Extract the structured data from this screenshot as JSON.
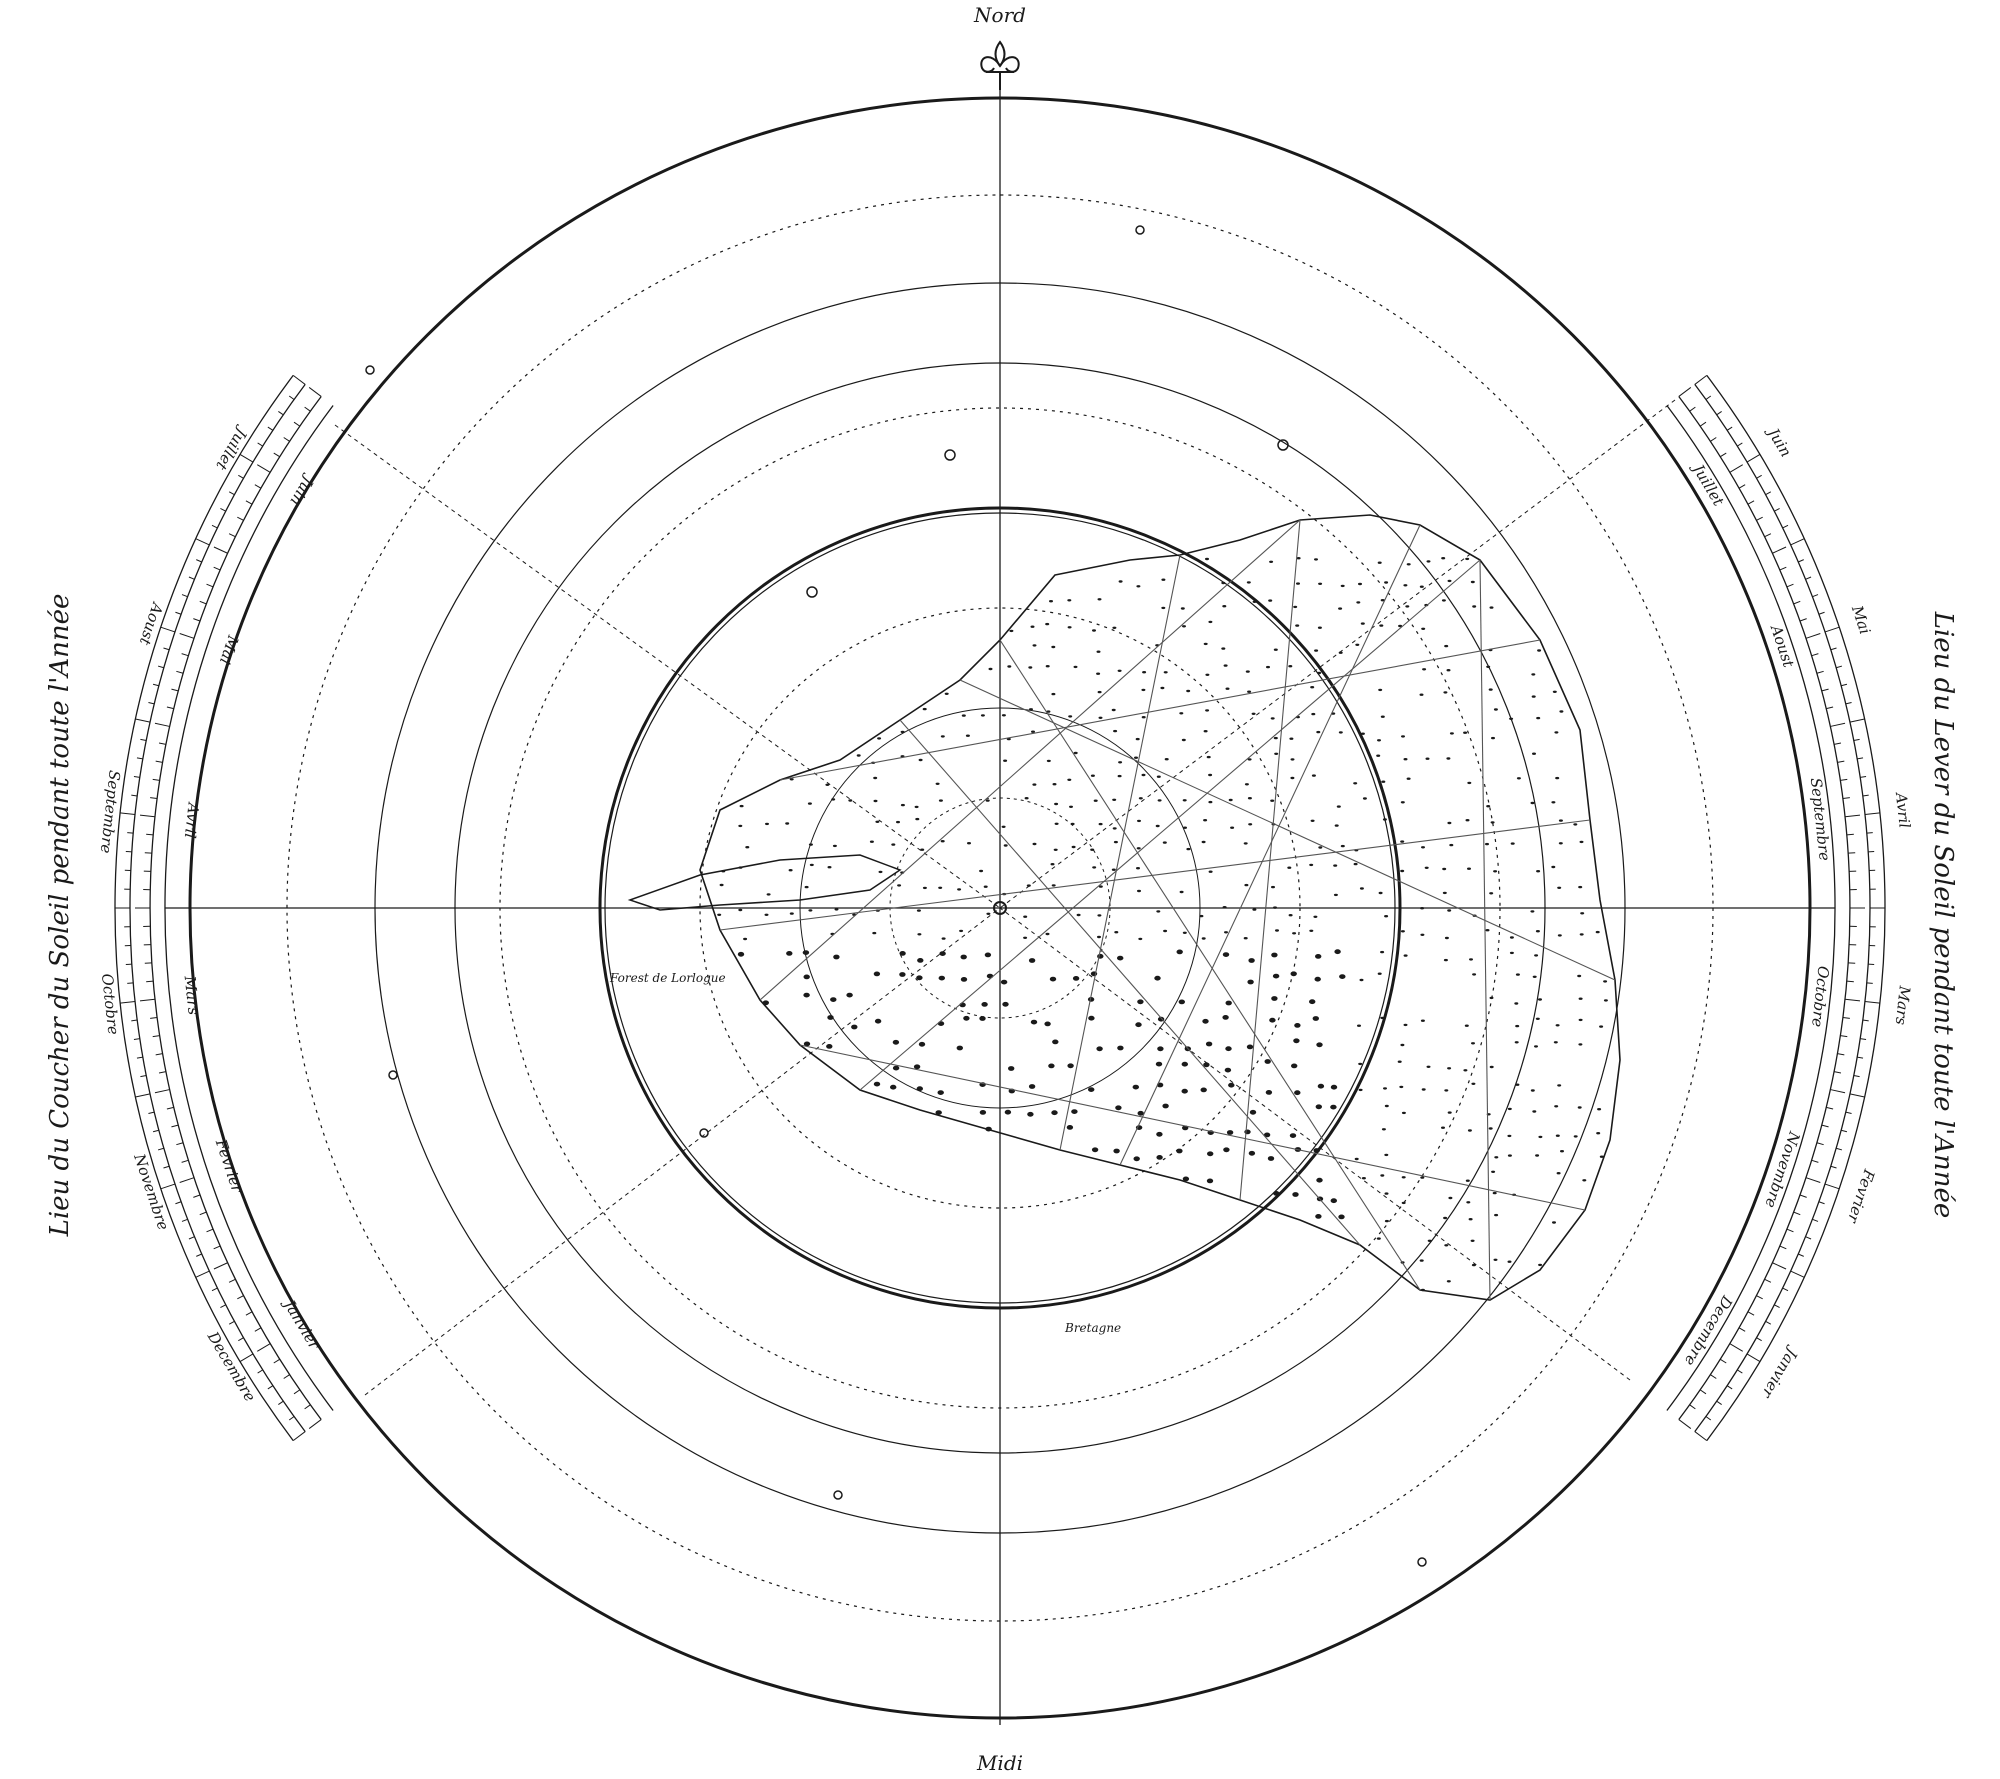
{
  "compass": {
    "north_label": "Nord",
    "south_label": "Midi"
  },
  "side_titles": {
    "left": "Lieu du Coucher du Soleil pendant toute l'Année",
    "right": "Lieu du Lever du Soleil pendant toute l'Année"
  },
  "left_scale": {
    "outer_months": [
      "Juin",
      "Mai",
      "Avril",
      "Mars",
      "Fevrier",
      "Janvier"
    ],
    "inner_months": [
      "Juillet",
      "Aoust",
      "Septembre",
      "Octobre",
      "Novembre",
      "Decembre"
    ]
  },
  "right_scale": {
    "outer_months": [
      "Juin",
      "Mai",
      "Avril",
      "Mars",
      "Fevrier",
      "Janvier"
    ],
    "inner_months": [
      "Juillet",
      "Aoust",
      "Septembre",
      "Octobre",
      "Novembre",
      "Decembre"
    ]
  },
  "map_labels": {
    "forest_label": "Forest de Lorlogue",
    "south_village": "Bretagne"
  },
  "colors": {
    "ink": "#1a1a1a",
    "faint_ink": "#8a8a8a",
    "paper": "#ffffff"
  }
}
